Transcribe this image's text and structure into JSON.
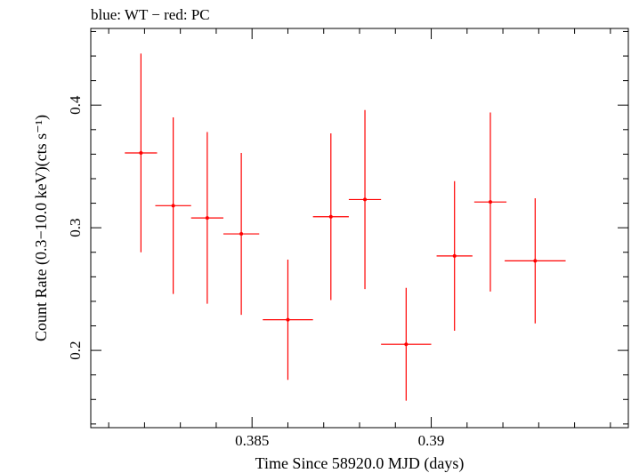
{
  "chart_data": {
    "type": "scatter",
    "title": "blue: WT − red: PC",
    "xlabel": "Time Since 58920.0 MJD (days)",
    "ylabel": "Count Rate (0.3−10.0 keV)(cts s⁻¹)",
    "xlim": [
      0.3805,
      0.3955
    ],
    "ylim": [
      0.137,
      0.4625
    ],
    "xticks": [
      {
        "value": 0.385,
        "label": "0.385"
      },
      {
        "value": 0.39,
        "label": "0.39"
      }
    ],
    "yticks": [
      {
        "value": 0.2,
        "label": "0.2"
      },
      {
        "value": 0.3,
        "label": "0.3"
      },
      {
        "value": 0.4,
        "label": "0.4"
      }
    ],
    "x_minor_step": 0.001,
    "y_minor_step": 0.02,
    "grid": false,
    "series": [
      {
        "name": "PC",
        "color": "#ff0000",
        "points": [
          {
            "x": 0.3819,
            "xerr": 0.00045,
            "y": 0.361,
            "yerr_lo": 0.081,
            "yerr_hi": 0.081
          },
          {
            "x": 0.3828,
            "xerr": 0.0005,
            "y": 0.318,
            "yerr_lo": 0.072,
            "yerr_hi": 0.072
          },
          {
            "x": 0.38375,
            "xerr": 0.00045,
            "y": 0.308,
            "yerr_lo": 0.07,
            "yerr_hi": 0.07
          },
          {
            "x": 0.3847,
            "xerr": 0.0005,
            "y": 0.295,
            "yerr_lo": 0.066,
            "yerr_hi": 0.066
          },
          {
            "x": 0.386,
            "xerr": 0.0007,
            "y": 0.225,
            "yerr_lo": 0.049,
            "yerr_hi": 0.049
          },
          {
            "x": 0.3872,
            "xerr": 0.0005,
            "y": 0.309,
            "yerr_lo": 0.068,
            "yerr_hi": 0.068
          },
          {
            "x": 0.38815,
            "xerr": 0.00045,
            "y": 0.323,
            "yerr_lo": 0.073,
            "yerr_hi": 0.073
          },
          {
            "x": 0.3893,
            "xerr": 0.0007,
            "y": 0.205,
            "yerr_lo": 0.046,
            "yerr_hi": 0.046
          },
          {
            "x": 0.39065,
            "xerr": 0.0005,
            "y": 0.277,
            "yerr_lo": 0.061,
            "yerr_hi": 0.061
          },
          {
            "x": 0.39165,
            "xerr": 0.00045,
            "y": 0.321,
            "yerr_lo": 0.073,
            "yerr_hi": 0.073
          },
          {
            "x": 0.3929,
            "xerr": 0.00085,
            "y": 0.273,
            "yerr_lo": 0.051,
            "yerr_hi": 0.051
          }
        ]
      }
    ]
  }
}
